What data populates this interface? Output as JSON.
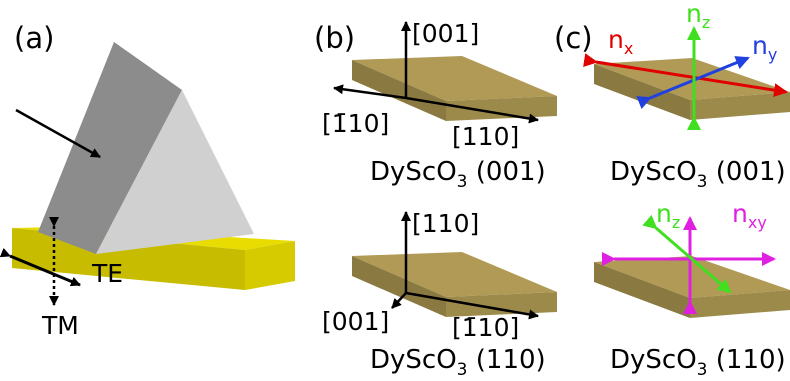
{
  "panels": {
    "a": {
      "label": "(a)",
      "te_label": "TE",
      "tm_label": "TM"
    },
    "b": {
      "label": "(b)",
      "top": {
        "up_label": "[001]",
        "left_label": "[1̄",
        "left_rest": "10]",
        "right_label": "[110]",
        "crystal": "DyScO",
        "crystal_sub": "3",
        "orientation": "(001)"
      },
      "bottom": {
        "up_label": "[110]",
        "left_label": "[001]",
        "right_label": "[1̄",
        "right_rest": "10]",
        "crystal": "DyScO",
        "crystal_sub": "3",
        "orientation": "(110)"
      }
    },
    "c": {
      "label": "(c)",
      "top": {
        "n_x": "n",
        "n_x_sub": "x",
        "n_y": "n",
        "n_y_sub": "y",
        "n_z": "n",
        "n_z_sub": "z",
        "crystal": "DyScO",
        "crystal_sub": "3",
        "orientation": "(001)"
      },
      "bottom": {
        "n_z": "n",
        "n_z_sub": "z",
        "n_xy": "n",
        "n_xy_sub": "xy",
        "crystal": "DyScO",
        "crystal_sub": "3",
        "orientation": "(110)"
      }
    }
  },
  "colors": {
    "slab_top": "#b09a55",
    "slab_front": "#8a7a42",
    "substrate_top": "#e8dc00",
    "substrate_front": "#c8bc00",
    "prism_left": "#8c8c8c",
    "prism_right": "#d0d0d0",
    "nx": "#e00000",
    "ny": "#2040e0",
    "nz": "#40e020",
    "nxy": "#e020e0"
  }
}
